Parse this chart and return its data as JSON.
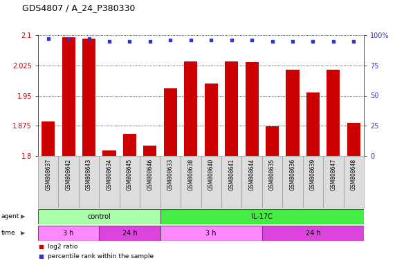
{
  "title": "GDS4807 / A_24_P380330",
  "samples": [
    "GSM808637",
    "GSM808642",
    "GSM808643",
    "GSM808634",
    "GSM808645",
    "GSM808646",
    "GSM808633",
    "GSM808638",
    "GSM808640",
    "GSM808641",
    "GSM808644",
    "GSM808635",
    "GSM808636",
    "GSM808639",
    "GSM808647",
    "GSM808648"
  ],
  "log2_values": [
    1.885,
    2.095,
    2.092,
    1.814,
    1.855,
    1.825,
    1.968,
    2.035,
    1.98,
    2.035,
    2.033,
    1.873,
    2.015,
    1.958,
    2.015,
    1.882
  ],
  "percentile_values": [
    97,
    97,
    97,
    95,
    95,
    95,
    96,
    96,
    96,
    96,
    96,
    95,
    95,
    95,
    95,
    95
  ],
  "bar_color": "#cc0000",
  "dot_color": "#3333cc",
  "ylim_left": [
    1.8,
    2.1
  ],
  "ylim_right": [
    0,
    100
  ],
  "yticks_left": [
    1.8,
    1.875,
    1.95,
    2.025,
    2.1
  ],
  "yticks_right": [
    0,
    25,
    50,
    75,
    100
  ],
  "ytick_labels_left": [
    "1.8",
    "1.875",
    "1.95",
    "2.025",
    "2.1"
  ],
  "ytick_labels_right": [
    "0",
    "25",
    "50",
    "75",
    "100%"
  ],
  "agent_groups": [
    {
      "label": "control",
      "start": 0,
      "end": 6,
      "color": "#aaffaa"
    },
    {
      "label": "IL-17C",
      "start": 6,
      "end": 16,
      "color": "#44ee44"
    }
  ],
  "time_groups": [
    {
      "label": "3 h",
      "start": 0,
      "end": 3,
      "color": "#ff88ff"
    },
    {
      "label": "24 h",
      "start": 3,
      "end": 6,
      "color": "#dd44dd"
    },
    {
      "label": "3 h",
      "start": 6,
      "end": 11,
      "color": "#ff88ff"
    },
    {
      "label": "24 h",
      "start": 11,
      "end": 16,
      "color": "#dd44dd"
    }
  ],
  "legend_items": [
    {
      "color": "#cc0000",
      "label": "log2 ratio"
    },
    {
      "color": "#3333cc",
      "label": "percentile rank within the sample"
    }
  ],
  "bg_color": "#ffffff",
  "grid_color": "#000000",
  "left_axis_color": "#cc0000",
  "right_axis_color": "#3333cc",
  "sample_box_color": "#dddddd",
  "sample_box_edge": "#999999"
}
